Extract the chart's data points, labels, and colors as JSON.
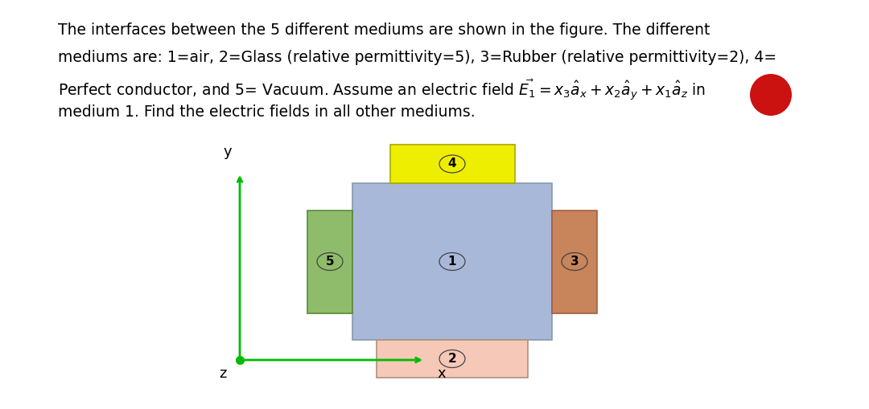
{
  "fig_bg": "#ffffff",
  "medium1_color": "#a8b8d8",
  "medium2_color": "#f5c8b8",
  "medium3_color": "#c8845a",
  "medium4_color": "#eeee00",
  "medium5_color": "#8fbc6a",
  "medium1_edge": "#8899aa",
  "medium2_edge": "#b09080",
  "medium3_edge": "#a06040",
  "medium4_edge": "#aaaa00",
  "medium5_edge": "#5a8a3a",
  "axis_color": "#00bb00",
  "red_blob_color": "#cc1111",
  "line1": "The interfaces between the 5 different mediums are shown in the figure. The different",
  "line2": "mediums are: 1=air, 2=Glass (relative permittivity=5), 3=Rubber (relative permittivity=2), 4=",
  "line3": "Perfect conductor, and 5= Vacuum. Assume an electric field $\\vec{E_1} = x_3\\hat{a}_x + x_2\\hat{a}_y + x_1\\hat{a}_z$ in",
  "line4": "medium 1. Find the electric fields in all other mediums.",
  "text_fontsize": 13.5,
  "label_fontsize": 11
}
